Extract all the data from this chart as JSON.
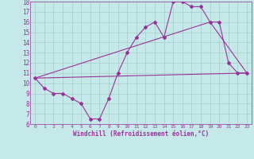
{
  "xlabel": "Windchill (Refroidissement éolien,°C)",
  "xlim": [
    -0.5,
    23.5
  ],
  "ylim": [
    6,
    18
  ],
  "xticks": [
    0,
    1,
    2,
    3,
    4,
    5,
    6,
    7,
    8,
    9,
    10,
    11,
    12,
    13,
    14,
    15,
    16,
    17,
    18,
    19,
    20,
    21,
    22,
    23
  ],
  "yticks": [
    6,
    7,
    8,
    9,
    10,
    11,
    12,
    13,
    14,
    15,
    16,
    17,
    18
  ],
  "bg_color": "#c5e8e8",
  "grid_color": "#a8cccc",
  "line_color": "#993399",
  "line1_x": [
    0,
    1,
    2,
    3,
    4,
    5,
    6,
    7,
    8,
    9,
    10,
    11,
    12,
    13,
    14,
    15,
    16,
    17,
    18,
    19,
    20,
    21,
    22,
    23
  ],
  "line1_y": [
    10.5,
    9.5,
    9.0,
    9.0,
    8.5,
    8.0,
    6.5,
    6.5,
    8.5,
    11.0,
    13.0,
    14.5,
    15.5,
    16.0,
    14.5,
    18.0,
    18.0,
    17.5,
    17.5,
    16.0,
    16.0,
    12.0,
    11.0,
    11.0
  ],
  "line2_x": [
    0,
    23
  ],
  "line2_y": [
    10.5,
    11.0
  ],
  "line3_x": [
    0,
    19,
    23
  ],
  "line3_y": [
    10.5,
    16.0,
    11.0
  ],
  "marker": "D",
  "marker_size": 2.0,
  "line_width": 0.8
}
